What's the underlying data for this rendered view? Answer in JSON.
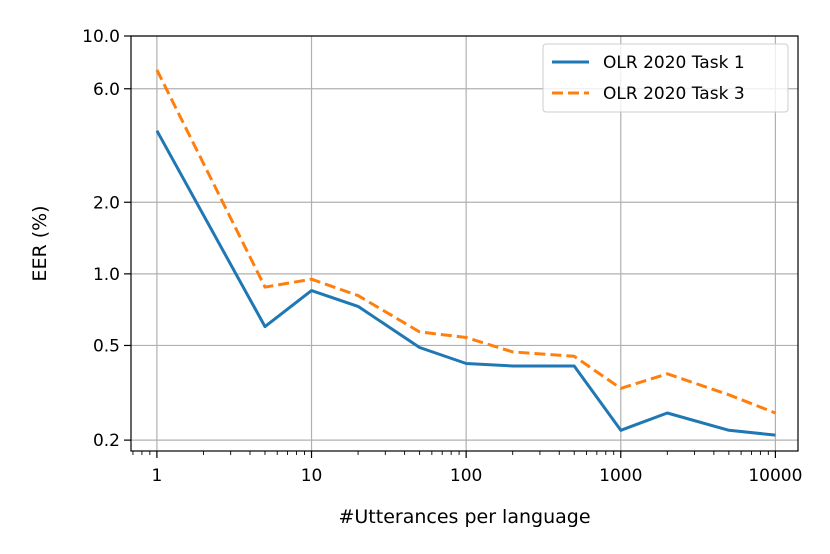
{
  "chart_data": {
    "type": "line",
    "title": "",
    "xlabel": "#Utterances per language",
    "ylabel": "EER (%)",
    "xscale": "log",
    "yscale": "log",
    "xlim": [
      0.68,
      14000
    ],
    "ylim": [
      0.18,
      10.0
    ],
    "xticks": [
      1,
      10,
      100,
      1000,
      10000
    ],
    "xtick_labels": [
      "1",
      "10",
      "100",
      "1000",
      "10000"
    ],
    "yticks": [
      0.2,
      0.5,
      1.0,
      2.0,
      6.0,
      10.0
    ],
    "ytick_labels": [
      "0.2",
      "0.5",
      "1.0",
      "2.0",
      "6.0",
      "10.0"
    ],
    "grid": true,
    "legend_position": "top-right",
    "series": [
      {
        "name": "OLR 2020 Task 1",
        "color": "#1f77b4",
        "linestyle": "solid",
        "x": [
          1,
          5,
          10,
          20,
          50,
          100,
          200,
          500,
          1000,
          2000,
          5000,
          10000
        ],
        "y": [
          4.0,
          0.6,
          0.85,
          0.73,
          0.49,
          0.42,
          0.41,
          0.41,
          0.22,
          0.26,
          0.22,
          0.21
        ]
      },
      {
        "name": "OLR 2020 Task 3",
        "color": "#ff7f0e",
        "linestyle": "dashed",
        "x": [
          1,
          5,
          10,
          20,
          50,
          100,
          200,
          500,
          1000,
          2000,
          5000,
          10000
        ],
        "y": [
          7.2,
          0.88,
          0.95,
          0.81,
          0.57,
          0.54,
          0.47,
          0.45,
          0.33,
          0.38,
          0.31,
          0.26
        ]
      }
    ]
  }
}
